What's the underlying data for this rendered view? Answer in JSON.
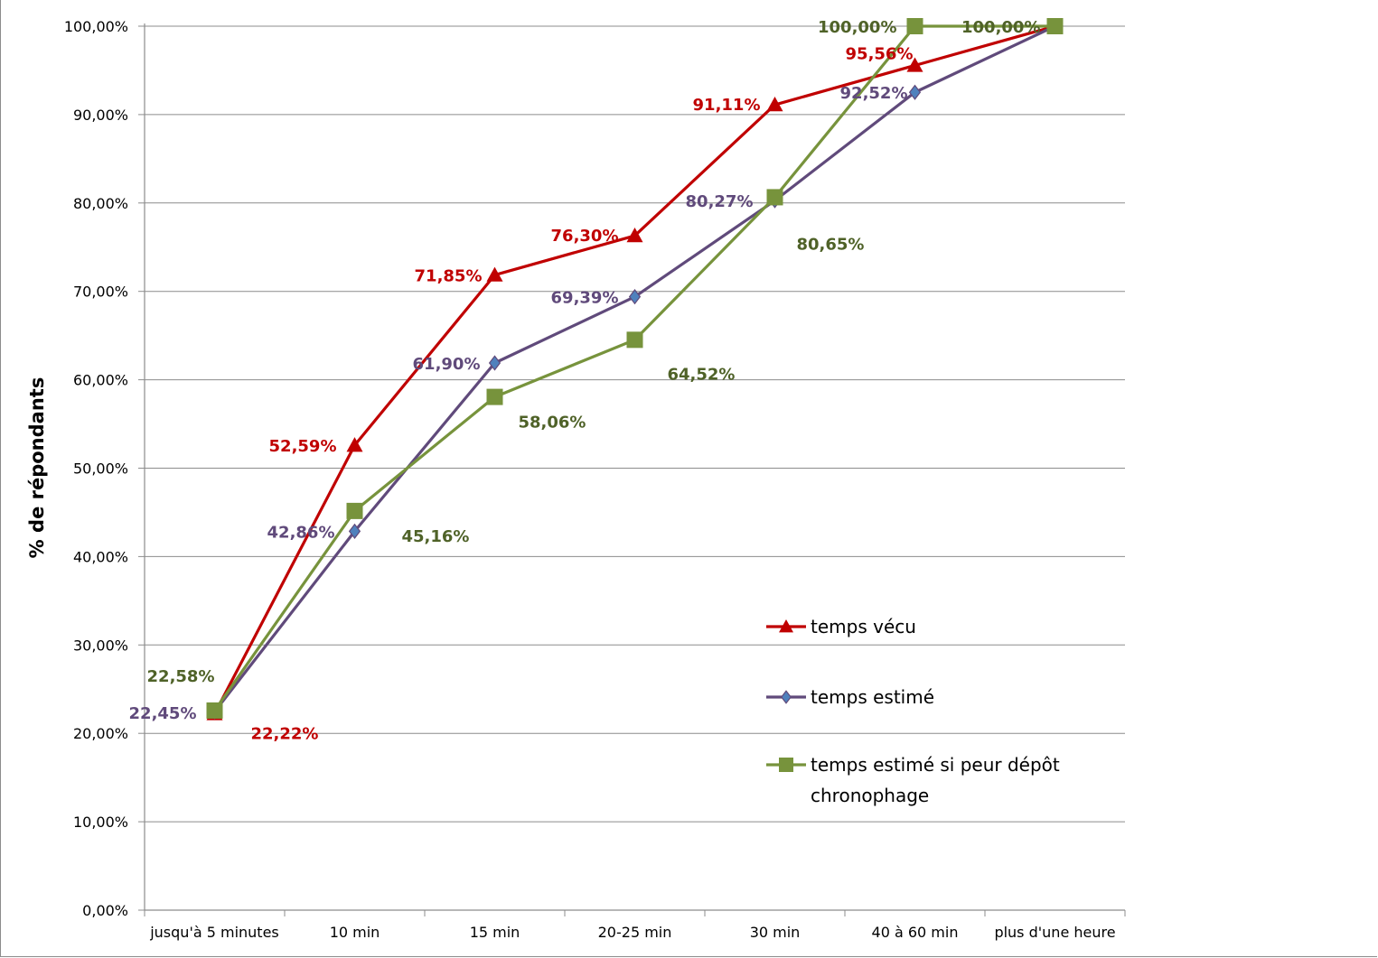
{
  "chart_data": {
    "type": "line",
    "categories": [
      "jusqu'à 5 minutes",
      "10 min",
      "15 min",
      "20-25 min",
      "30 min",
      "40 à 60 min",
      "plus d'une heure"
    ],
    "ylabel": "% de répondants",
    "xlabel": "",
    "ylim": [
      0,
      100
    ],
    "yticks": [
      "0,00%",
      "10,00%",
      "20,00%",
      "30,00%",
      "40,00%",
      "50,00%",
      "60,00%",
      "70,00%",
      "80,00%",
      "90,00%",
      "100,00%"
    ],
    "grid": "horizontal",
    "legend_position": "right",
    "series": [
      {
        "name": "temps vécu",
        "color": "#c00000",
        "marker": "triangle",
        "values": [
          22.22,
          52.59,
          71.85,
          76.3,
          91.11,
          95.56,
          100.0
        ],
        "labels": [
          "22,22%",
          "52,59%",
          "71,85%",
          "76,30%",
          "91,11%",
          "95,56%",
          ""
        ]
      },
      {
        "name": "temps estimé",
        "color": "#604a7b",
        "marker": "diamond",
        "values": [
          22.45,
          42.86,
          61.9,
          69.39,
          80.27,
          92.52,
          100.0
        ],
        "labels": [
          "22,45%",
          "42,86%",
          "61,90%",
          "69,39%",
          "80,27%",
          "92,52%",
          ""
        ]
      },
      {
        "name": "temps estimé si peur dépôt",
        "name_line2": "chronophage",
        "color": "#77933c",
        "label_color": "#4f6228",
        "marker": "square",
        "values": [
          22.58,
          45.16,
          58.06,
          64.52,
          80.65,
          100.0,
          100.0
        ],
        "labels": [
          "22,58%",
          "45,16%",
          "58,06%",
          "64,52%",
          "80,65%",
          "100,00%",
          "100,00%"
        ]
      }
    ]
  }
}
